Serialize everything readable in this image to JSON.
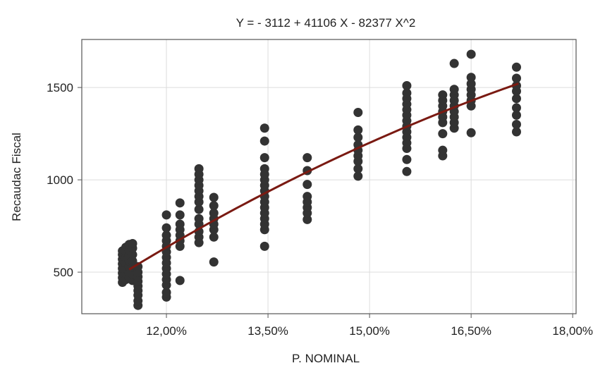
{
  "chart_data": {
    "type": "scatter",
    "title": "Y = - 3112 + 41106 X - 82377 X^2",
    "xlabel": "P. NOMINAL",
    "ylabel": "Recaudac Fiscal",
    "xlim": [
      0.1075,
      0.1805
    ],
    "ylim": [
      275,
      1760
    ],
    "x_ticks": [
      {
        "value": 0.12,
        "label": "12,00%"
      },
      {
        "value": 0.135,
        "label": "13,50%"
      },
      {
        "value": 0.15,
        "label": "15,00%"
      },
      {
        "value": 0.165,
        "label": "16,50%"
      },
      {
        "value": 0.18,
        "label": "18,00%"
      }
    ],
    "y_ticks": [
      {
        "value": 500,
        "label": "500"
      },
      {
        "value": 1000,
        "label": "1000"
      },
      {
        "value": 1500,
        "label": "1500"
      }
    ],
    "grid": true,
    "fit": {
      "a": -3112,
      "b": 41106,
      "c": -82377,
      "x_range": [
        0.1145,
        0.172
      ],
      "color": "#7a1a12"
    },
    "point_color": "#333333",
    "series": [
      {
        "points": [
          {
            "x": 0.1135,
            "y": 445
          },
          {
            "x": 0.1135,
            "y": 470
          },
          {
            "x": 0.1135,
            "y": 495
          },
          {
            "x": 0.1135,
            "y": 520
          },
          {
            "x": 0.1135,
            "y": 545
          },
          {
            "x": 0.1135,
            "y": 570
          },
          {
            "x": 0.1135,
            "y": 595
          },
          {
            "x": 0.1135,
            "y": 615
          },
          {
            "x": 0.114,
            "y": 460
          },
          {
            "x": 0.114,
            "y": 490
          },
          {
            "x": 0.114,
            "y": 520
          },
          {
            "x": 0.114,
            "y": 550
          },
          {
            "x": 0.114,
            "y": 580
          },
          {
            "x": 0.114,
            "y": 610
          },
          {
            "x": 0.114,
            "y": 635
          },
          {
            "x": 0.1145,
            "y": 470
          },
          {
            "x": 0.1145,
            "y": 500
          },
          {
            "x": 0.1145,
            "y": 530
          },
          {
            "x": 0.1145,
            "y": 560
          },
          {
            "x": 0.1145,
            "y": 590
          },
          {
            "x": 0.1145,
            "y": 620
          },
          {
            "x": 0.1145,
            "y": 650
          },
          {
            "x": 0.115,
            "y": 455
          },
          {
            "x": 0.115,
            "y": 490
          },
          {
            "x": 0.115,
            "y": 525
          },
          {
            "x": 0.115,
            "y": 560
          },
          {
            "x": 0.115,
            "y": 595
          },
          {
            "x": 0.115,
            "y": 630
          },
          {
            "x": 0.115,
            "y": 655
          },
          {
            "x": 0.1158,
            "y": 320
          },
          {
            "x": 0.1158,
            "y": 345
          },
          {
            "x": 0.1158,
            "y": 375
          },
          {
            "x": 0.1158,
            "y": 400
          },
          {
            "x": 0.1158,
            "y": 425
          },
          {
            "x": 0.1158,
            "y": 450
          },
          {
            "x": 0.1158,
            "y": 475
          },
          {
            "x": 0.1158,
            "y": 500
          },
          {
            "x": 0.1158,
            "y": 530
          },
          {
            "x": 0.12,
            "y": 365
          },
          {
            "x": 0.12,
            "y": 390
          },
          {
            "x": 0.12,
            "y": 430
          },
          {
            "x": 0.12,
            "y": 460
          },
          {
            "x": 0.12,
            "y": 490
          },
          {
            "x": 0.12,
            "y": 520
          },
          {
            "x": 0.12,
            "y": 550
          },
          {
            "x": 0.12,
            "y": 580
          },
          {
            "x": 0.12,
            "y": 610
          },
          {
            "x": 0.12,
            "y": 640
          },
          {
            "x": 0.12,
            "y": 670
          },
          {
            "x": 0.12,
            "y": 700
          },
          {
            "x": 0.12,
            "y": 740
          },
          {
            "x": 0.12,
            "y": 810
          },
          {
            "x": 0.122,
            "y": 455
          },
          {
            "x": 0.122,
            "y": 640
          },
          {
            "x": 0.122,
            "y": 670
          },
          {
            "x": 0.122,
            "y": 700
          },
          {
            "x": 0.122,
            "y": 730
          },
          {
            "x": 0.122,
            "y": 760
          },
          {
            "x": 0.122,
            "y": 810
          },
          {
            "x": 0.122,
            "y": 875
          },
          {
            "x": 0.1248,
            "y": 660
          },
          {
            "x": 0.1248,
            "y": 690
          },
          {
            "x": 0.1248,
            "y": 720
          },
          {
            "x": 0.1248,
            "y": 760
          },
          {
            "x": 0.1248,
            "y": 790
          },
          {
            "x": 0.1248,
            "y": 840
          },
          {
            "x": 0.1248,
            "y": 880
          },
          {
            "x": 0.1248,
            "y": 910
          },
          {
            "x": 0.1248,
            "y": 940
          },
          {
            "x": 0.1248,
            "y": 970
          },
          {
            "x": 0.1248,
            "y": 1000
          },
          {
            "x": 0.1248,
            "y": 1030
          },
          {
            "x": 0.1248,
            "y": 1060
          },
          {
            "x": 0.127,
            "y": 555
          },
          {
            "x": 0.127,
            "y": 690
          },
          {
            "x": 0.127,
            "y": 730
          },
          {
            "x": 0.127,
            "y": 760
          },
          {
            "x": 0.127,
            "y": 790
          },
          {
            "x": 0.127,
            "y": 820
          },
          {
            "x": 0.127,
            "y": 860
          },
          {
            "x": 0.127,
            "y": 905
          },
          {
            "x": 0.1345,
            "y": 640
          },
          {
            "x": 0.1345,
            "y": 730
          },
          {
            "x": 0.1345,
            "y": 760
          },
          {
            "x": 0.1345,
            "y": 790
          },
          {
            "x": 0.1345,
            "y": 820
          },
          {
            "x": 0.1345,
            "y": 850
          },
          {
            "x": 0.1345,
            "y": 880
          },
          {
            "x": 0.1345,
            "y": 910
          },
          {
            "x": 0.1345,
            "y": 940
          },
          {
            "x": 0.1345,
            "y": 970
          },
          {
            "x": 0.1345,
            "y": 1000
          },
          {
            "x": 0.1345,
            "y": 1030
          },
          {
            "x": 0.1345,
            "y": 1060
          },
          {
            "x": 0.1345,
            "y": 1120
          },
          {
            "x": 0.1345,
            "y": 1210
          },
          {
            "x": 0.1345,
            "y": 1280
          },
          {
            "x": 0.1408,
            "y": 785
          },
          {
            "x": 0.1408,
            "y": 820
          },
          {
            "x": 0.1408,
            "y": 850
          },
          {
            "x": 0.1408,
            "y": 880
          },
          {
            "x": 0.1408,
            "y": 910
          },
          {
            "x": 0.1408,
            "y": 975
          },
          {
            "x": 0.1408,
            "y": 1050
          },
          {
            "x": 0.1408,
            "y": 1120
          },
          {
            "x": 0.1483,
            "y": 1020
          },
          {
            "x": 0.1483,
            "y": 1060
          },
          {
            "x": 0.1483,
            "y": 1100
          },
          {
            "x": 0.1483,
            "y": 1130
          },
          {
            "x": 0.1483,
            "y": 1160
          },
          {
            "x": 0.1483,
            "y": 1190
          },
          {
            "x": 0.1483,
            "y": 1230
          },
          {
            "x": 0.1483,
            "y": 1270
          },
          {
            "x": 0.1483,
            "y": 1365
          },
          {
            "x": 0.1555,
            "y": 1045
          },
          {
            "x": 0.1555,
            "y": 1110
          },
          {
            "x": 0.1555,
            "y": 1170
          },
          {
            "x": 0.1555,
            "y": 1200
          },
          {
            "x": 0.1555,
            "y": 1230
          },
          {
            "x": 0.1555,
            "y": 1260
          },
          {
            "x": 0.1555,
            "y": 1290
          },
          {
            "x": 0.1555,
            "y": 1320
          },
          {
            "x": 0.1555,
            "y": 1350
          },
          {
            "x": 0.1555,
            "y": 1380
          },
          {
            "x": 0.1555,
            "y": 1410
          },
          {
            "x": 0.1555,
            "y": 1440
          },
          {
            "x": 0.1555,
            "y": 1470
          },
          {
            "x": 0.1555,
            "y": 1510
          },
          {
            "x": 0.1608,
            "y": 1130
          },
          {
            "x": 0.1608,
            "y": 1160
          },
          {
            "x": 0.1608,
            "y": 1250
          },
          {
            "x": 0.1608,
            "y": 1310
          },
          {
            "x": 0.1608,
            "y": 1340
          },
          {
            "x": 0.1608,
            "y": 1370
          },
          {
            "x": 0.1608,
            "y": 1400
          },
          {
            "x": 0.1608,
            "y": 1430
          },
          {
            "x": 0.1608,
            "y": 1460
          },
          {
            "x": 0.1625,
            "y": 1280
          },
          {
            "x": 0.1625,
            "y": 1310
          },
          {
            "x": 0.1625,
            "y": 1340
          },
          {
            "x": 0.1625,
            "y": 1370
          },
          {
            "x": 0.1625,
            "y": 1400
          },
          {
            "x": 0.1625,
            "y": 1430
          },
          {
            "x": 0.1625,
            "y": 1460
          },
          {
            "x": 0.1625,
            "y": 1490
          },
          {
            "x": 0.1625,
            "y": 1630
          },
          {
            "x": 0.165,
            "y": 1255
          },
          {
            "x": 0.165,
            "y": 1400
          },
          {
            "x": 0.165,
            "y": 1430
          },
          {
            "x": 0.165,
            "y": 1460
          },
          {
            "x": 0.165,
            "y": 1490
          },
          {
            "x": 0.165,
            "y": 1520
          },
          {
            "x": 0.165,
            "y": 1555
          },
          {
            "x": 0.165,
            "y": 1680
          },
          {
            "x": 0.1717,
            "y": 1260
          },
          {
            "x": 0.1717,
            "y": 1300
          },
          {
            "x": 0.1717,
            "y": 1350
          },
          {
            "x": 0.1717,
            "y": 1390
          },
          {
            "x": 0.1717,
            "y": 1440
          },
          {
            "x": 0.1717,
            "y": 1480
          },
          {
            "x": 0.1717,
            "y": 1510
          },
          {
            "x": 0.1717,
            "y": 1550
          },
          {
            "x": 0.1717,
            "y": 1610
          }
        ]
      }
    ]
  }
}
